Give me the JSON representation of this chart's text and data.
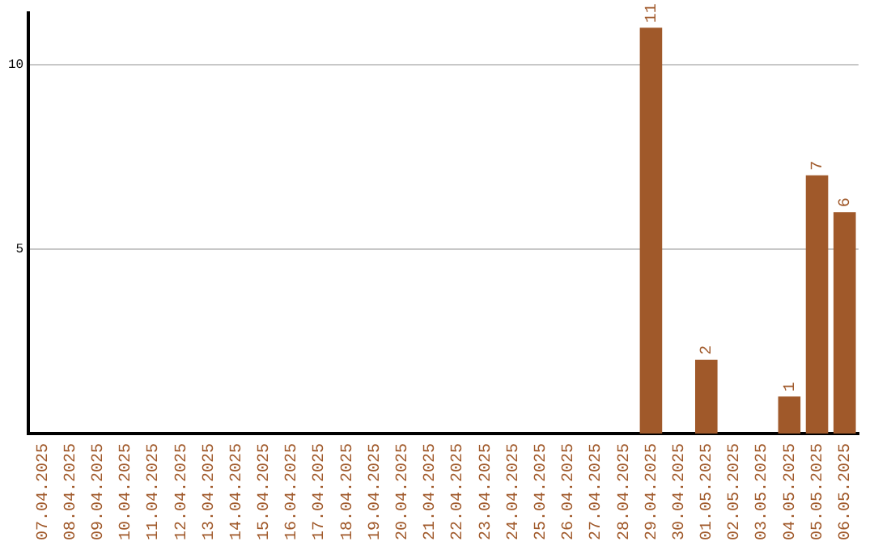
{
  "chart_data": {
    "type": "bar",
    "categories": [
      "07.04.2025",
      "08.04.2025",
      "09.04.2025",
      "10.04.2025",
      "11.04.2025",
      "12.04.2025",
      "13.04.2025",
      "14.04.2025",
      "15.04.2025",
      "16.04.2025",
      "17.04.2025",
      "18.04.2025",
      "19.04.2025",
      "20.04.2025",
      "21.04.2025",
      "22.04.2025",
      "23.04.2025",
      "24.04.2025",
      "25.04.2025",
      "26.04.2025",
      "27.04.2025",
      "28.04.2025",
      "29.04.2025",
      "30.04.2025",
      "01.05.2025",
      "02.05.2025",
      "03.05.2025",
      "04.05.2025",
      "05.05.2025",
      "06.05.2025"
    ],
    "values": [
      0,
      0,
      0,
      0,
      0,
      0,
      0,
      0,
      0,
      0,
      0,
      0,
      0,
      0,
      0,
      0,
      0,
      0,
      0,
      0,
      0,
      0,
      11,
      0,
      2,
      0,
      0,
      1,
      7,
      6
    ],
    "value_labels": [
      null,
      null,
      null,
      null,
      null,
      null,
      null,
      null,
      null,
      null,
      null,
      null,
      null,
      null,
      null,
      null,
      null,
      null,
      null,
      null,
      null,
      null,
      "11",
      null,
      "2",
      null,
      null,
      "1",
      "7",
      "6"
    ],
    "color": "#a0592a",
    "ylim": [
      0,
      11.4
    ],
    "yticks": [
      5,
      10
    ],
    "grid": "y",
    "legend": false
  }
}
